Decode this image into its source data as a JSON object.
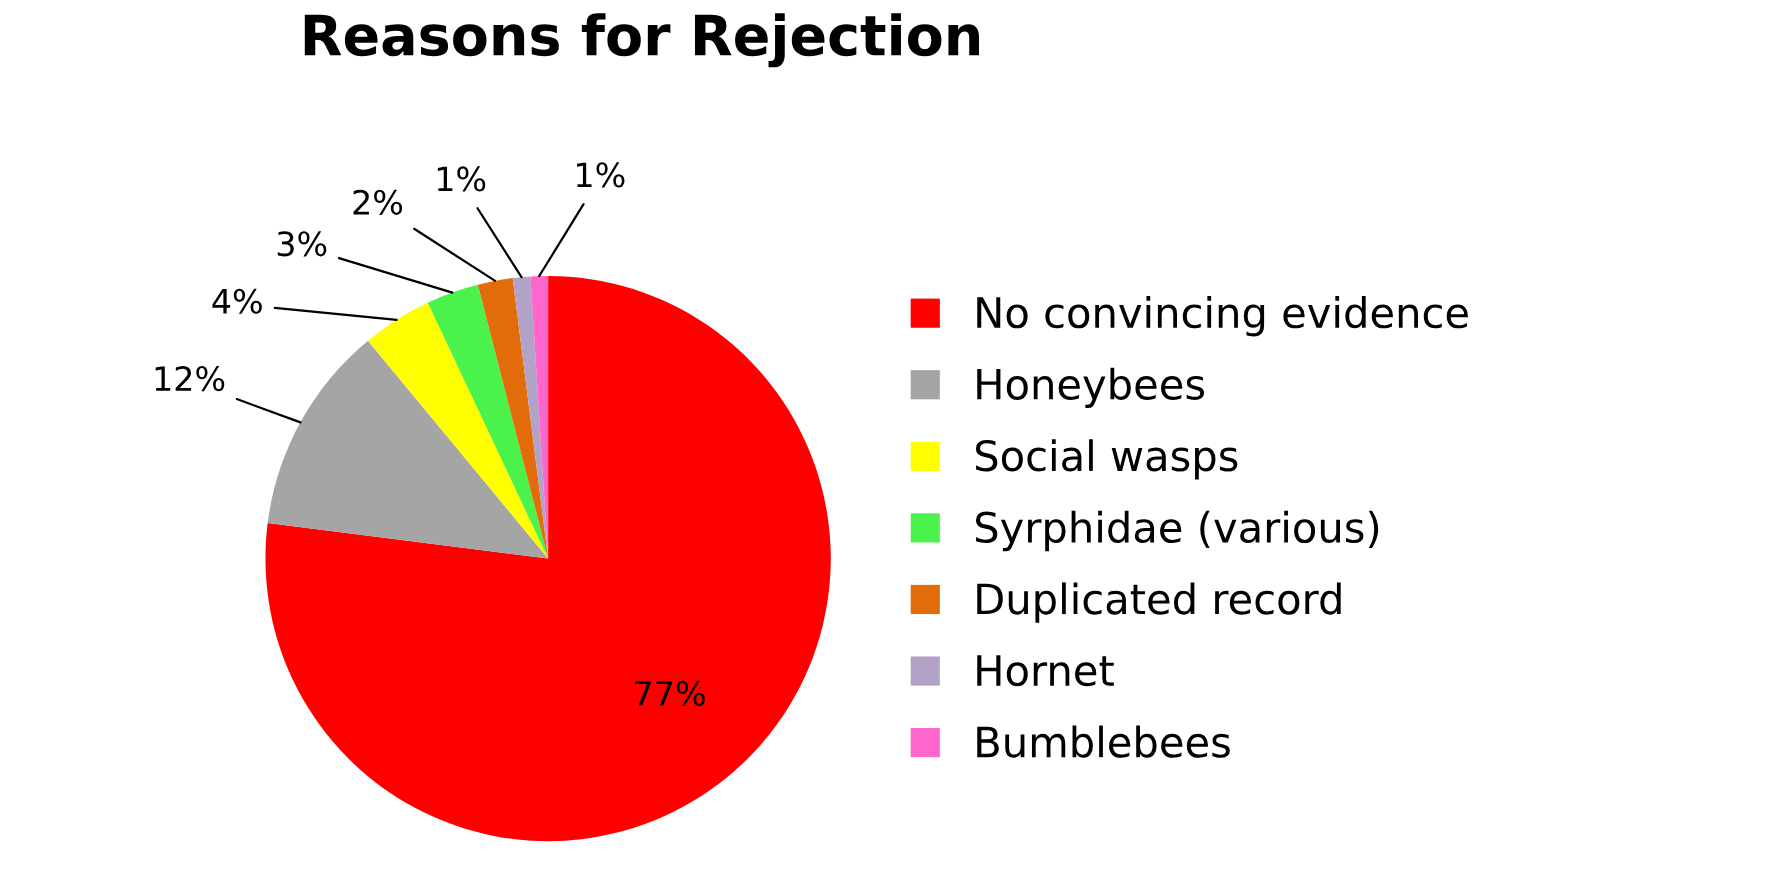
{
  "chart_data": {
    "type": "pie",
    "title": "Reasons for Rejection",
    "categories": [
      "No convincing evidence",
      "Honeybees",
      "Social wasps",
      "Syrphidae (various)",
      "Duplicated record",
      "Hornet",
      "Bumblebees"
    ],
    "values": [
      77,
      12,
      4,
      3,
      2,
      1,
      1
    ],
    "colors": [
      "#ff0000",
      "#a5a5a5",
      "#ffff00",
      "#4cf24c",
      "#e36c0a",
      "#b3a2c7",
      "#ff66cc"
    ],
    "value_labels": [
      "77%",
      "12%",
      "4%",
      "3%",
      "2%",
      "1%",
      "1%"
    ],
    "legend": "right"
  }
}
